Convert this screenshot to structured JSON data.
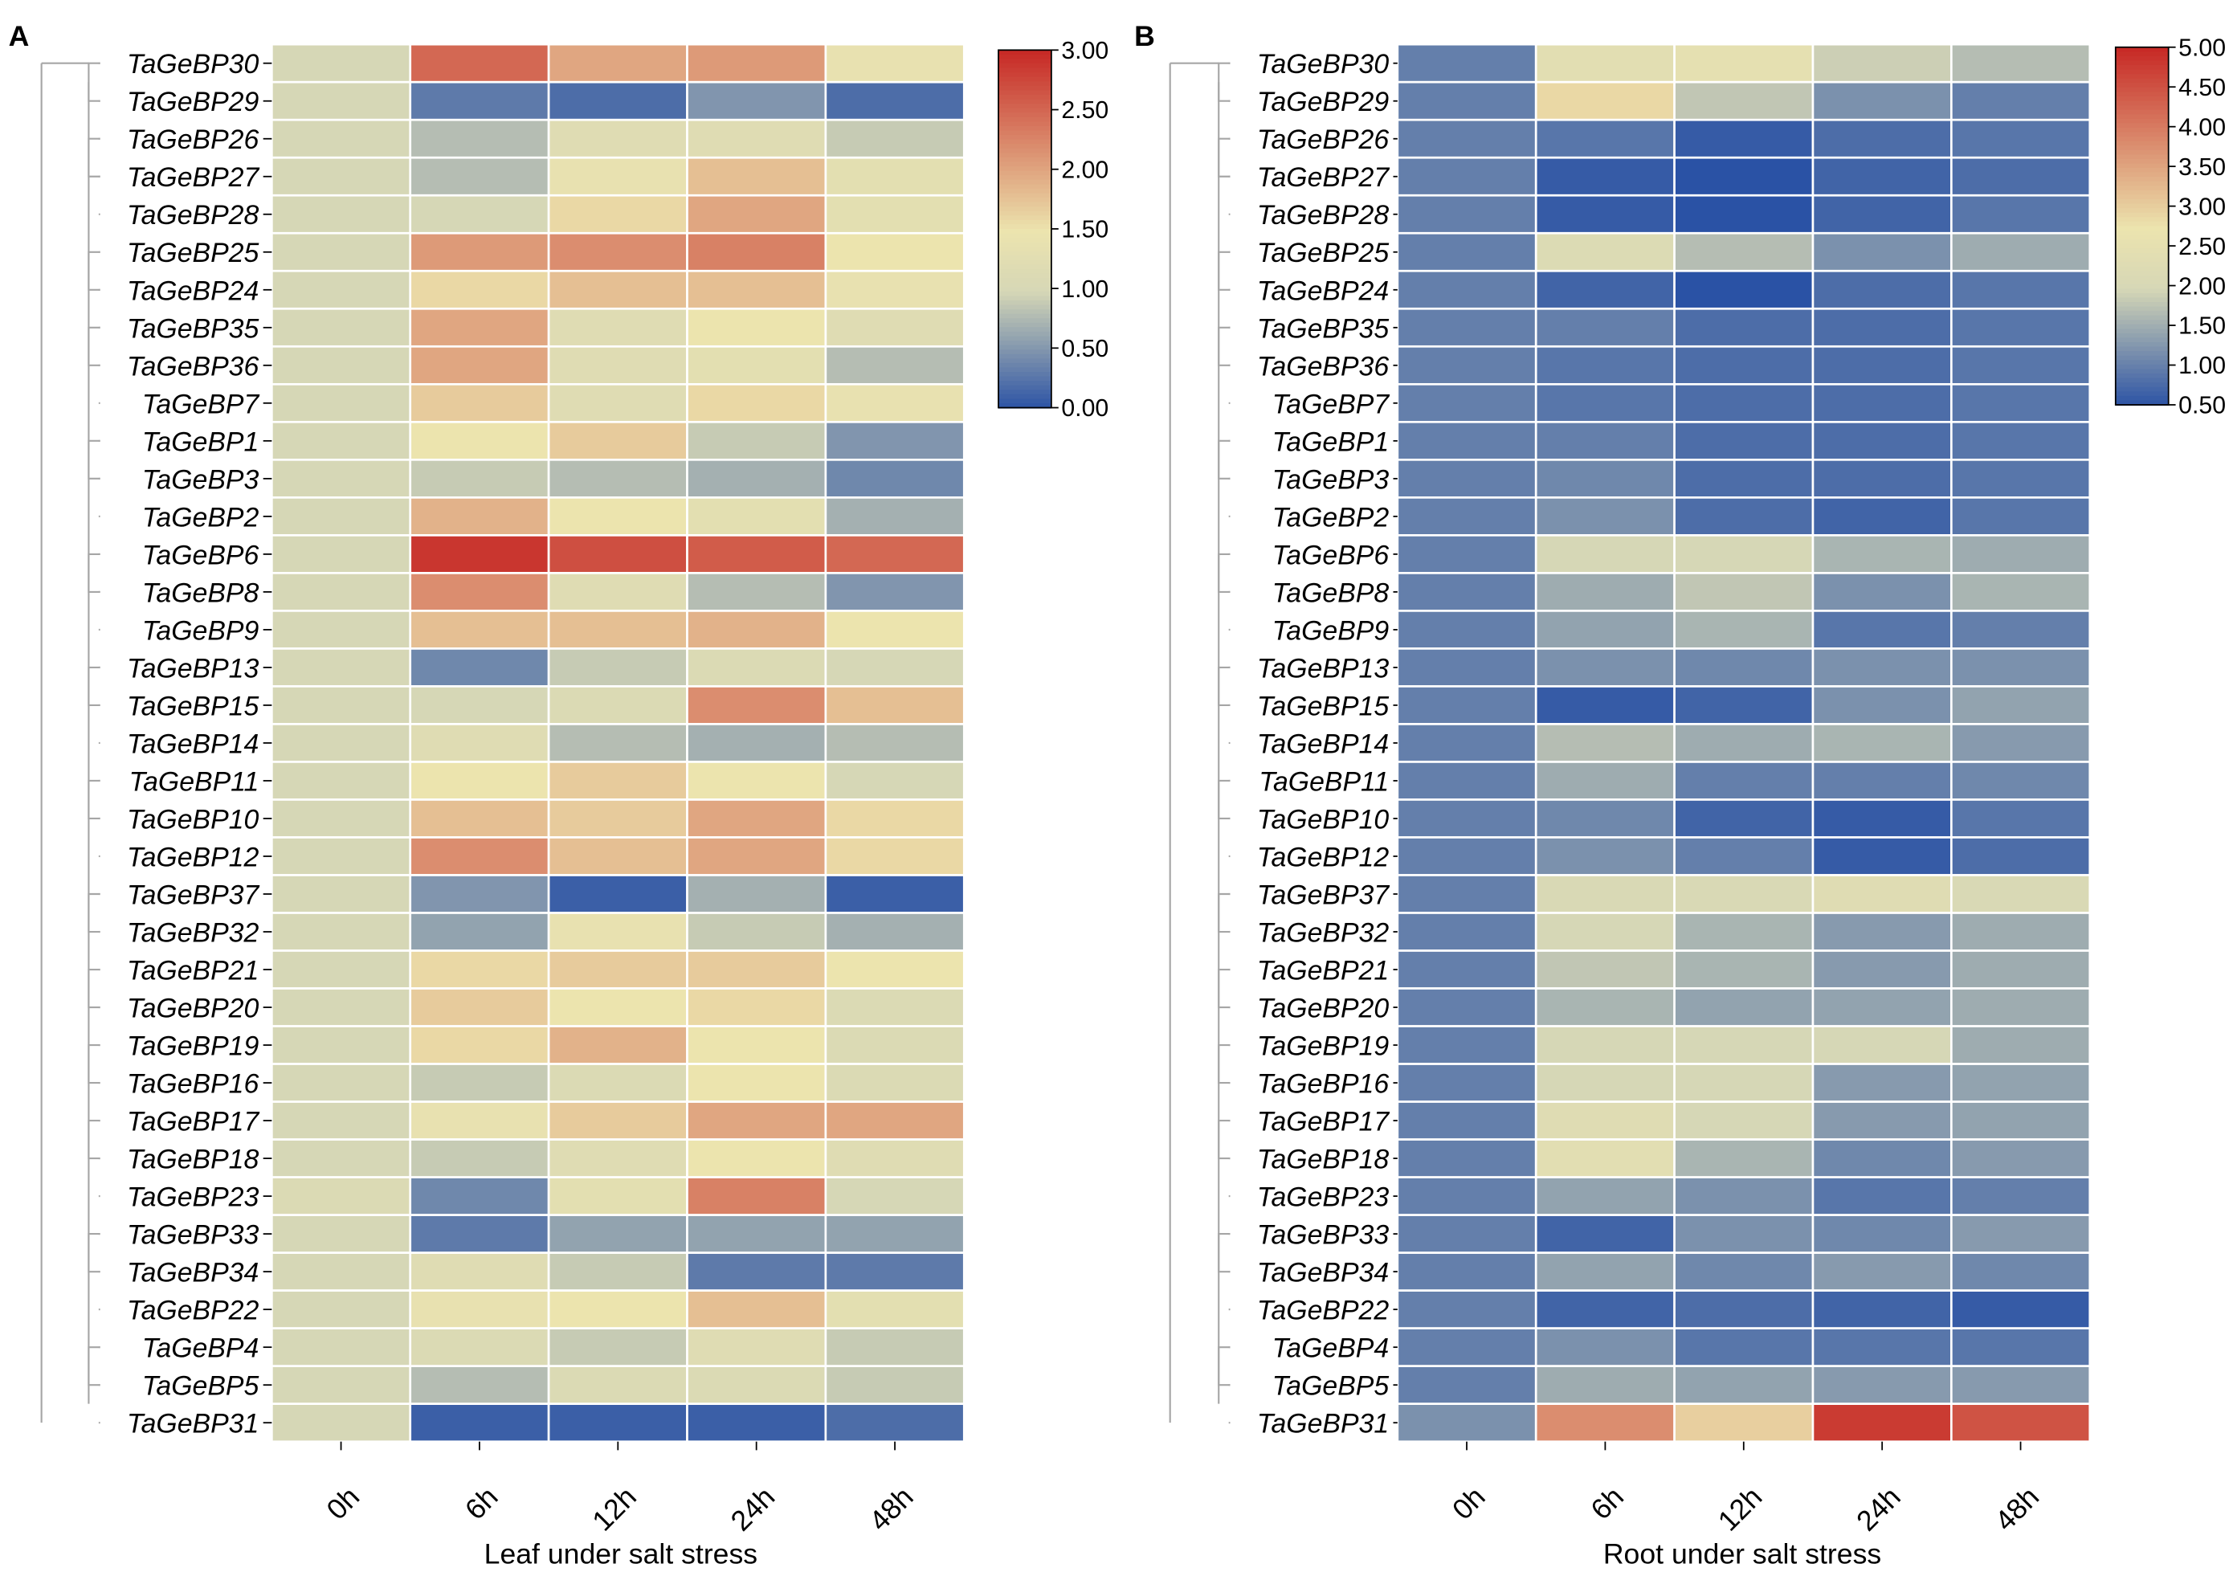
{
  "genes": [
    "TaGeBP30",
    "TaGeBP29",
    "TaGeBP26",
    "TaGeBP27",
    "TaGeBP28",
    "TaGeBP25",
    "TaGeBP24",
    "TaGeBP35",
    "TaGeBP36",
    "TaGeBP7",
    "TaGeBP1",
    "TaGeBP3",
    "TaGeBP2",
    "TaGeBP6",
    "TaGeBP8",
    "TaGeBP9",
    "TaGeBP13",
    "TaGeBP15",
    "TaGeBP14",
    "TaGeBP11",
    "TaGeBP10",
    "TaGeBP12",
    "TaGeBP37",
    "TaGeBP32",
    "TaGeBP21",
    "TaGeBP20",
    "TaGeBP19",
    "TaGeBP16",
    "TaGeBP17",
    "TaGeBP18",
    "TaGeBP23",
    "TaGeBP33",
    "TaGeBP34",
    "TaGeBP22",
    "TaGeBP4",
    "TaGeBP5",
    "TaGeBP31"
  ],
  "chart_data": [
    {
      "panel": "A",
      "type": "heatmap",
      "title": "",
      "xlabel": "Leaf under salt stress",
      "ylabel": "",
      "categories": [
        "0h",
        "6h",
        "12h",
        "24h",
        "48h"
      ],
      "colorbar": {
        "min": 0.0,
        "max": 3.0,
        "ticks": [
          "0.00",
          "0.50",
          "1.00",
          "1.50",
          "2.00",
          "2.50",
          "3.00"
        ]
      },
      "values": [
        [
          1.0,
          2.5,
          2.0,
          2.1,
          1.4
        ],
        [
          1.0,
          0.3,
          0.2,
          0.5,
          0.2
        ],
        [
          1.0,
          0.8,
          1.2,
          1.2,
          0.9
        ],
        [
          1.0,
          0.8,
          1.4,
          1.8,
          1.3
        ],
        [
          1.0,
          1.0,
          1.6,
          2.0,
          1.3
        ],
        [
          1.0,
          2.1,
          2.2,
          2.3,
          1.5
        ],
        [
          1.0,
          1.6,
          1.8,
          1.8,
          1.4
        ],
        [
          1.0,
          2.0,
          1.2,
          1.5,
          1.2
        ],
        [
          1.0,
          2.0,
          1.2,
          1.3,
          0.8
        ],
        [
          1.0,
          1.7,
          1.2,
          1.6,
          1.4
        ],
        [
          1.0,
          1.5,
          1.7,
          0.9,
          0.5
        ],
        [
          1.0,
          0.9,
          0.8,
          0.7,
          0.4
        ],
        [
          1.0,
          1.9,
          1.5,
          1.3,
          0.7
        ],
        [
          1.0,
          2.9,
          2.7,
          2.6,
          2.5
        ],
        [
          1.0,
          2.2,
          1.2,
          0.8,
          0.5
        ],
        [
          1.0,
          1.8,
          1.8,
          1.9,
          1.5
        ],
        [
          1.0,
          0.4,
          0.9,
          1.1,
          1.0
        ],
        [
          1.0,
          1.0,
          1.1,
          2.2,
          1.8
        ],
        [
          1.0,
          1.2,
          0.8,
          0.7,
          0.8
        ],
        [
          1.0,
          1.5,
          1.7,
          1.5,
          1.0
        ],
        [
          1.0,
          1.8,
          1.7,
          2.0,
          1.6
        ],
        [
          1.0,
          2.2,
          1.8,
          2.0,
          1.6
        ],
        [
          1.0,
          0.5,
          0.1,
          0.7,
          0.1
        ],
        [
          1.0,
          0.6,
          1.4,
          0.9,
          0.7
        ],
        [
          1.0,
          1.6,
          1.7,
          1.7,
          1.5
        ],
        [
          1.0,
          1.7,
          1.5,
          1.6,
          1.1
        ],
        [
          1.0,
          1.6,
          1.9,
          1.5,
          1.1
        ],
        [
          1.0,
          0.9,
          1.1,
          1.5,
          1.1
        ],
        [
          1.0,
          1.4,
          1.7,
          2.0,
          2.0
        ],
        [
          1.0,
          0.9,
          1.2,
          1.5,
          1.2
        ],
        [
          1.1,
          0.4,
          1.3,
          2.3,
          1.0
        ],
        [
          1.0,
          0.3,
          0.6,
          0.6,
          0.6
        ],
        [
          1.0,
          1.2,
          0.9,
          0.3,
          0.3
        ],
        [
          1.0,
          1.4,
          1.5,
          1.8,
          1.3
        ],
        [
          1.0,
          1.1,
          0.9,
          1.2,
          0.9
        ],
        [
          1.0,
          0.8,
          1.1,
          1.1,
          0.9
        ],
        [
          1.0,
          0.1,
          0.1,
          0.1,
          0.2
        ]
      ],
      "dendrogram": "#a6a6a6"
    },
    {
      "panel": "B",
      "type": "heatmap",
      "title": "",
      "xlabel": "Root under salt stress",
      "ylabel": "",
      "categories": [
        "0h",
        "6h",
        "12h",
        "24h",
        "48h"
      ],
      "colorbar": {
        "min": 0.5,
        "max": 5.0,
        "ticks": [
          "0.50",
          "1.00",
          "1.50",
          "2.00",
          "2.50",
          "3.00",
          "3.50",
          "4.00",
          "4.50",
          "5.00"
        ]
      },
      "values": [
        [
          1.0,
          2.4,
          2.5,
          1.9,
          1.7
        ],
        [
          1.0,
          2.9,
          1.8,
          1.2,
          1.0
        ],
        [
          1.0,
          0.9,
          0.6,
          0.8,
          0.9
        ],
        [
          1.0,
          0.6,
          0.5,
          0.7,
          0.8
        ],
        [
          1.0,
          0.6,
          0.4,
          0.7,
          0.9
        ],
        [
          1.0,
          2.2,
          1.7,
          1.2,
          1.5
        ],
        [
          1.0,
          0.7,
          0.5,
          0.8,
          0.9
        ],
        [
          1.0,
          1.0,
          0.8,
          0.8,
          0.9
        ],
        [
          1.0,
          0.9,
          0.8,
          0.8,
          0.9
        ],
        [
          1.0,
          0.9,
          0.8,
          0.8,
          0.9
        ],
        [
          1.0,
          1.0,
          0.8,
          0.8,
          0.9
        ],
        [
          1.0,
          1.1,
          0.8,
          0.8,
          0.9
        ],
        [
          1.0,
          1.2,
          0.8,
          0.7,
          0.9
        ],
        [
          1.0,
          2.0,
          2.0,
          1.6,
          1.5
        ],
        [
          1.0,
          1.5,
          1.8,
          1.2,
          1.6
        ],
        [
          1.0,
          1.4,
          1.6,
          0.9,
          1.0
        ],
        [
          1.0,
          1.2,
          1.1,
          1.2,
          1.2
        ],
        [
          1.0,
          0.6,
          0.7,
          1.2,
          1.4
        ],
        [
          1.0,
          1.7,
          1.5,
          1.6,
          1.3
        ],
        [
          1.0,
          1.5,
          1.0,
          1.0,
          1.1
        ],
        [
          1.0,
          1.1,
          0.7,
          0.6,
          0.9
        ],
        [
          1.0,
          1.2,
          1.0,
          0.6,
          0.8
        ],
        [
          1.0,
          2.1,
          2.1,
          2.3,
          2.1
        ],
        [
          1.0,
          2.0,
          1.6,
          1.3,
          1.5
        ],
        [
          1.0,
          1.8,
          1.6,
          1.3,
          1.5
        ],
        [
          1.0,
          1.6,
          1.4,
          1.4,
          1.5
        ],
        [
          1.0,
          2.0,
          2.0,
          2.0,
          1.5
        ],
        [
          1.0,
          2.0,
          2.0,
          1.3,
          1.4
        ],
        [
          1.0,
          2.3,
          2.0,
          1.3,
          1.4
        ],
        [
          1.0,
          2.4,
          1.6,
          1.1,
          1.3
        ],
        [
          1.0,
          1.4,
          1.2,
          0.9,
          1.0
        ],
        [
          1.0,
          0.7,
          1.2,
          1.1,
          1.3
        ],
        [
          1.0,
          1.4,
          1.1,
          1.3,
          1.1
        ],
        [
          1.0,
          0.7,
          0.8,
          0.7,
          0.6
        ],
        [
          1.0,
          1.2,
          0.9,
          0.9,
          0.9
        ],
        [
          1.0,
          1.5,
          1.4,
          1.3,
          1.3
        ],
        [
          1.2,
          3.8,
          3.0,
          4.8,
          4.5
        ]
      ],
      "dendrogram": "#a6a6a6"
    }
  ],
  "colors": {
    "low": "#2a52a5",
    "mid": "#d6d7b6",
    "mid_high": "#ece4ae",
    "high": "#c72a26",
    "grid": "#ffffff",
    "axis": "#000000"
  }
}
